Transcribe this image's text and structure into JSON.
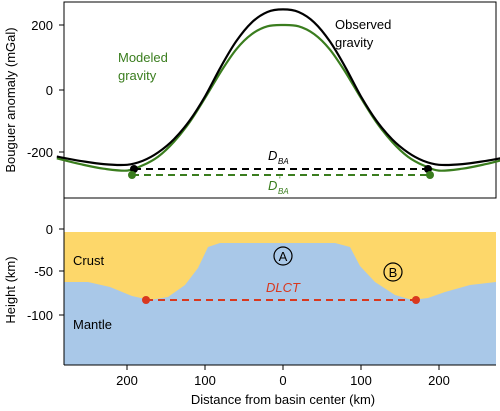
{
  "top_panel": {
    "ylabel": "Bouguer anomaly  (mGal)",
    "ticks": [
      "200",
      "0",
      "-200"
    ],
    "observed_label_line1": "Observed",
    "observed_label_line2": "gravity",
    "modeled_label_line1": "Modeled",
    "modeled_label_line2": "gravity",
    "dba_label": "D",
    "dba_sub": "BA",
    "dba_prime_label": "D",
    "dba_prime_sup": "'",
    "dba_prime_sub": "BA"
  },
  "bottom_panel": {
    "ylabel": "Height (km)",
    "ticks": [
      "0",
      "-50",
      "-100"
    ],
    "crust_label": "Crust",
    "mantle_label": "Mantle",
    "marker_a": "A",
    "marker_b": "B",
    "dlct_label": "DLCT"
  },
  "x_axis": {
    "xlabel": "Distance from basin center (km)",
    "ticks": [
      "200",
      "100",
      "0",
      "100",
      "200"
    ]
  },
  "colors": {
    "observed": "#000000",
    "modeled": "#3a7d1e",
    "crust": "#fdd76a",
    "mantle": "#a9c8e8",
    "dlct": "#d9381e",
    "marker_b_fill": "#fdd76a"
  },
  "chart_data": [
    {
      "type": "line",
      "title": "",
      "xlabel": "",
      "ylabel": "Bouguer anomaly  (mGal)",
      "xlim": [
        -290,
        290
      ],
      "ylim": [
        -300,
        265
      ],
      "series": [
        {
          "name": "Observed gravity",
          "x": [
            -290,
            -260,
            -230,
            -200,
            -180,
            -160,
            -140,
            -120,
            -100,
            -80,
            -60,
            -40,
            -20,
            0,
            20,
            40,
            60,
            80,
            100,
            120,
            140,
            160,
            180,
            200,
            230,
            260,
            290
          ],
          "y": [
            -205,
            -218,
            -228,
            -230,
            -218,
            -192,
            -152,
            -95,
            -20,
            70,
            150,
            208,
            240,
            248,
            240,
            208,
            150,
            70,
            -20,
            -95,
            -152,
            -192,
            -218,
            -230,
            -228,
            -218,
            -205
          ]
        },
        {
          "name": "Modeled gravity",
          "x": [
            -290,
            -260,
            -230,
            -200,
            -180,
            -160,
            -140,
            -120,
            -100,
            -80,
            -60,
            -40,
            -20,
            0,
            20,
            40,
            60,
            80,
            100,
            120,
            140,
            160,
            180,
            200,
            230,
            260,
            290
          ],
          "y": [
            -210,
            -228,
            -242,
            -248,
            -232,
            -205,
            -160,
            -100,
            -25,
            55,
            125,
            172,
            196,
            200,
            196,
            172,
            125,
            55,
            -25,
            -100,
            -160,
            -205,
            -232,
            -248,
            -242,
            -228,
            -210
          ]
        }
      ]
    }
  ]
}
